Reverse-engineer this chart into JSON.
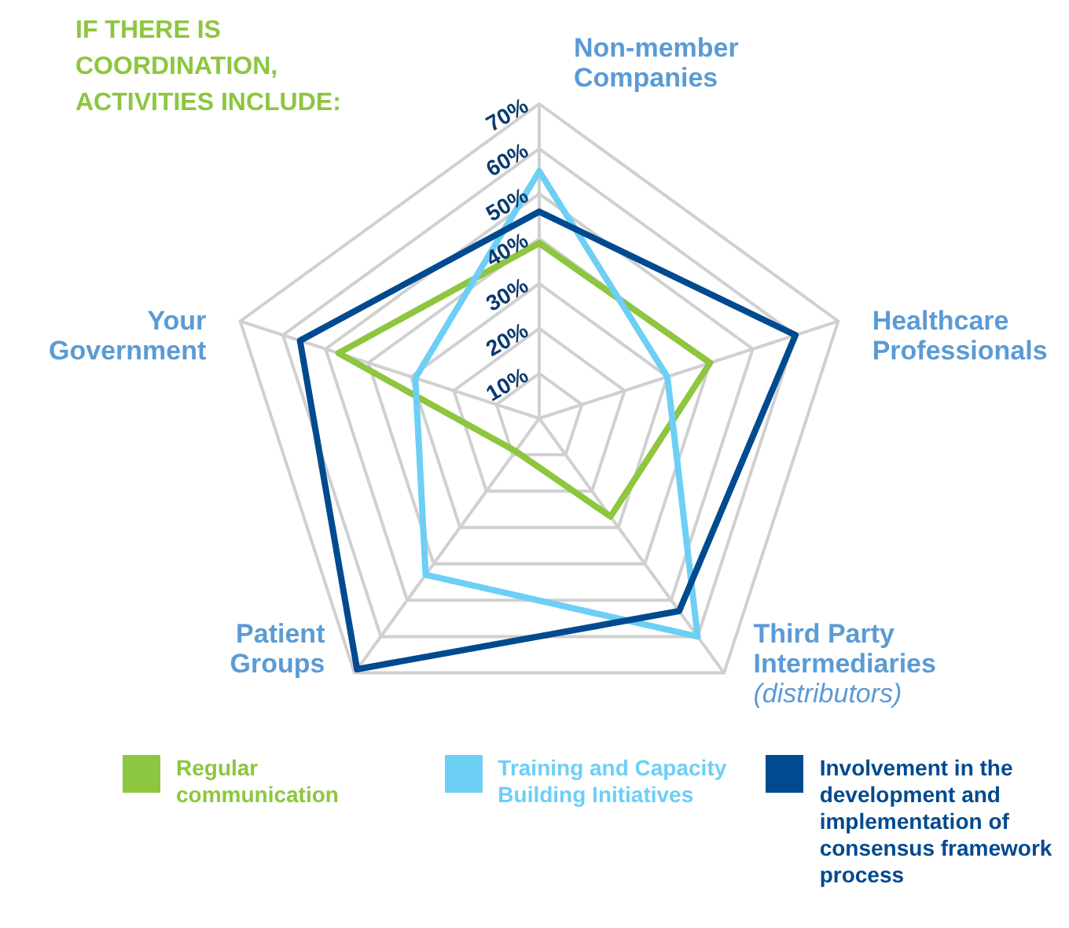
{
  "chart_data": {
    "type": "radar",
    "title": "IF THERE IS COORDINATION, ACTIVITIES INCLUDE:",
    "categories": [
      "Non-member Companies",
      "Healthcare Professionals",
      "Third Party Intermediaries (distributors)",
      "Patient Groups",
      "Your Government"
    ],
    "series": [
      {
        "name": "Regular communication",
        "color": "#8dc63f",
        "values": [
          39,
          40,
          27,
          9,
          47
        ]
      },
      {
        "name": "Training and Capacity Building Initiatives",
        "color": "#6dcff6",
        "values": [
          55,
          30,
          60,
          43,
          29
        ]
      },
      {
        "name": "Involvement in the development and implementation of consensus framework process",
        "color": "#004a8f",
        "values": [
          46,
          60,
          53,
          69,
          56
        ]
      }
    ],
    "ylim": [
      0,
      70
    ],
    "yticks": [
      {
        "value": 10,
        "label": "10%"
      },
      {
        "value": 20,
        "label": "20%"
      },
      {
        "value": 30,
        "label": "30%"
      },
      {
        "value": 40,
        "label": "40%"
      },
      {
        "value": 50,
        "label": "50%"
      },
      {
        "value": 60,
        "label": "60%"
      },
      {
        "value": 70,
        "label": "70%"
      }
    ],
    "grid": true,
    "legend": "bottom"
  }
}
